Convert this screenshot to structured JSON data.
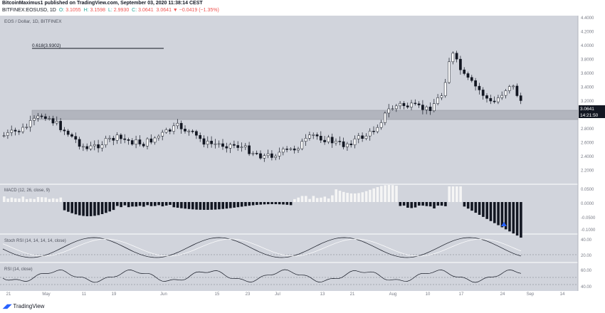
{
  "header": {
    "publisher_line": "BitcoinMaximus1 published on TradingView.com, September 03, 2020 11:38:14 CEST",
    "symbol": "BITFINEX:EOSUSD, 1D",
    "change": "3.0641 ▼ −0.0419 (−1.35%)",
    "o_label": "O:",
    "o": "3.1055",
    "h_label": "H:",
    "h": "3.1598",
    "l_label": "L:",
    "l": "2.9930",
    "c_label": "C:",
    "c": "3.0641"
  },
  "main_pane": {
    "title": "EOS / Dollar, 1D, BITFINEX",
    "fib_label": "0.618(3.9302)",
    "price_tag": "3.0641",
    "time_tag": "14:21:50",
    "y_ticks": [
      "4.4000",
      "4.2000",
      "4.0000",
      "3.8000",
      "3.6000",
      "3.4000",
      "3.2000",
      "3.0000",
      "2.8000",
      "2.6000",
      "2.4000",
      "2.2000"
    ]
  },
  "macd_pane": {
    "title": "MACD (12, 26, close, 9)",
    "y_ticks": [
      "0.0500",
      "0.0000",
      "-0.0500",
      "-0.1000"
    ]
  },
  "stoch_pane": {
    "title": "Stoch RSI (14, 14, 14, 14, close)",
    "y_ticks": [
      "40.00",
      "20.00"
    ]
  },
  "rsi_pane": {
    "title": "RSI (14, close)",
    "y_ticks": [
      "60.00",
      "40.00"
    ]
  },
  "x_ticks": [
    "21",
    "May",
    "11",
    "19",
    "Jun",
    "15",
    "23",
    "Jul",
    "13",
    "21",
    "Aug",
    "10",
    "17",
    "24",
    "Sep",
    "14"
  ],
  "footer": {
    "brand": "TradingView"
  },
  "colors": {
    "pane_bg": "#d1d4dc",
    "zone": "#b2b5be",
    "arrow": "#2962ff"
  },
  "chart_data": {
    "type": "candlestick",
    "symbol": "EOSUSD",
    "interval": "1D",
    "ylim": [
      2.2,
      4.4
    ],
    "support_zone": [
      2.92,
      3.0
    ],
    "fib_level": 3.9302,
    "last_close": 3.0641
  }
}
